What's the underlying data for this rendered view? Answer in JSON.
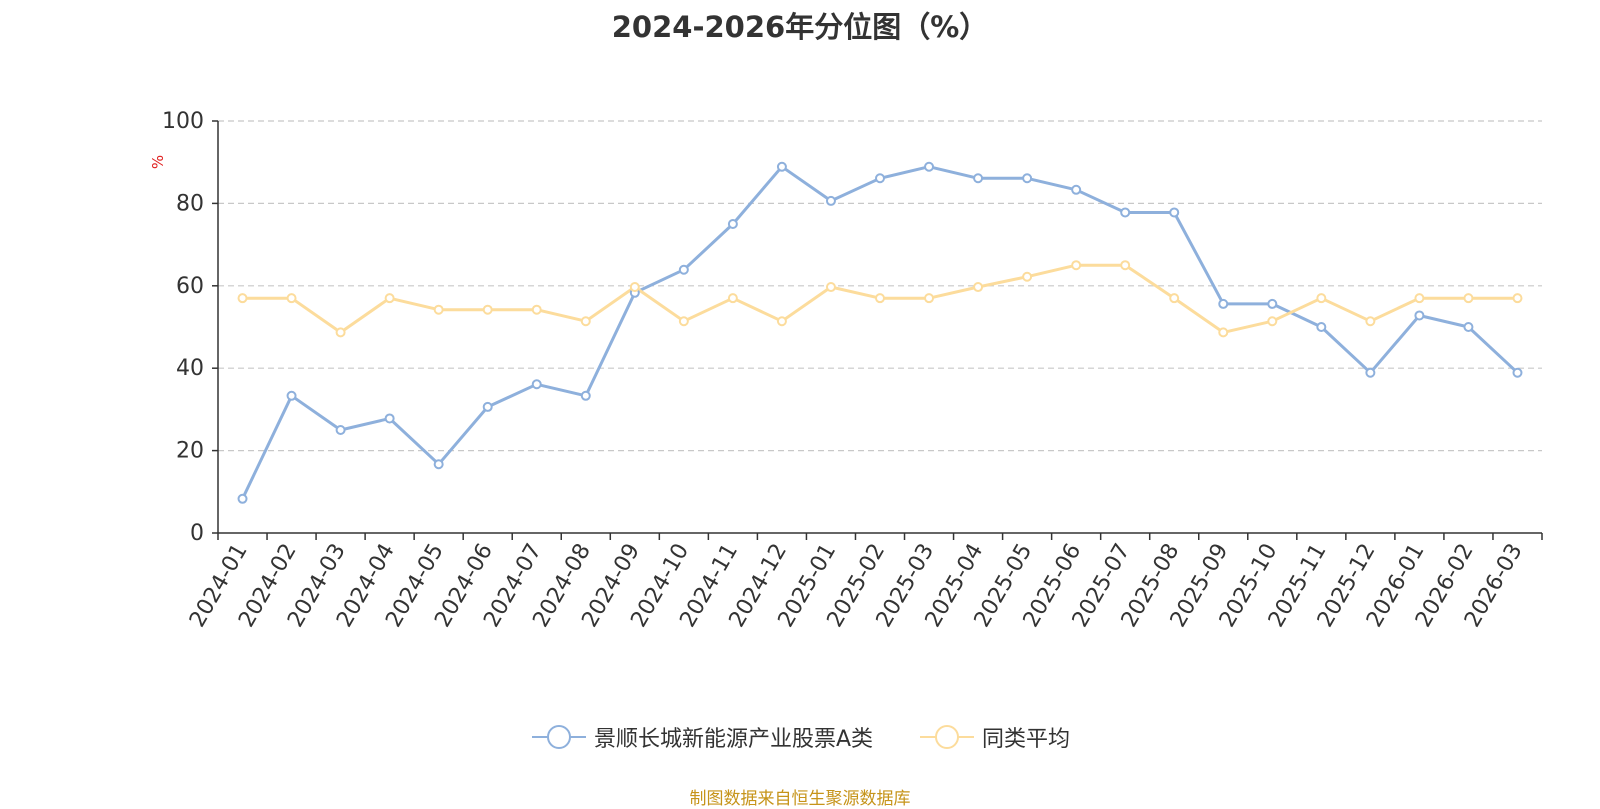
{
  "title": "2024-2026年分位图（%）",
  "source": "制图数据来自恒生聚源数据库",
  "chart_data": {
    "type": "line",
    "title": "2024-2026年分位图（%）",
    "ylabel": "%",
    "xlabel": "",
    "ylim": [
      0,
      100
    ],
    "yticks": [
      0,
      20,
      40,
      60,
      80,
      100
    ],
    "grid": true,
    "legend_position": "bottom-center",
    "categories": [
      "2024-01",
      "2024-02",
      "2024-03",
      "2024-04",
      "2024-05",
      "2024-06",
      "2024-07",
      "2024-08",
      "2024-09",
      "2024-10",
      "2024-11",
      "2024-12",
      "2025-01",
      "2025-02",
      "2025-03",
      "2025-04",
      "2025-05",
      "2025-06",
      "2025-07",
      "2025-08",
      "2025-09",
      "2025-10",
      "2025-11",
      "2025-12",
      "2026-01",
      "2026-02",
      "2026-03"
    ],
    "series": [
      {
        "name": "景顺长城新能源产业股票A类",
        "color": "#8eb0dc",
        "values": [
          8.3,
          33.3,
          25.0,
          27.8,
          16.7,
          30.6,
          36.1,
          33.3,
          58.3,
          63.9,
          75.0,
          88.9,
          80.6,
          86.1,
          88.9,
          86.1,
          86.1,
          83.3,
          77.8,
          77.8,
          55.6,
          55.6,
          50.0,
          38.9,
          52.8,
          50.0,
          38.9
        ]
      },
      {
        "name": "同类平均",
        "color": "#fcdc9c",
        "values": [
          57.0,
          57.0,
          48.7,
          57.0,
          54.2,
          54.2,
          54.2,
          51.4,
          59.7,
          51.4,
          57.0,
          51.4,
          59.7,
          57.0,
          57.0,
          59.7,
          62.2,
          65.0,
          65.0,
          57.0,
          48.7,
          51.4,
          57.0,
          51.4,
          57.0,
          57.0,
          57.0
        ]
      }
    ]
  }
}
